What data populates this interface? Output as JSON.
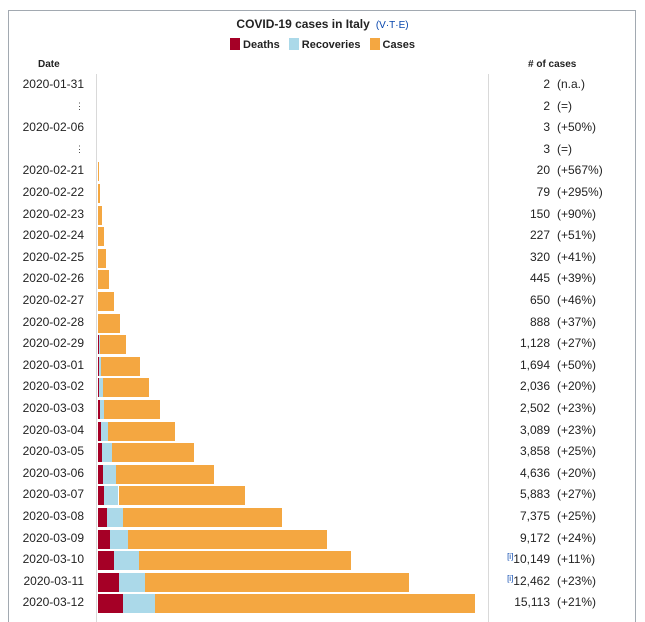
{
  "title": "COVID-19 cases in Italy",
  "vte": "(V·T·E)",
  "legend": [
    {
      "label": "Deaths",
      "color": "#a50026"
    },
    {
      "label": "Recoveries",
      "color": "#abd9e9"
    },
    {
      "label": "Cases",
      "color": "#f4a741"
    }
  ],
  "headers": {
    "date": "Date",
    "cases": "# of cases"
  },
  "chart_data": {
    "type": "bar",
    "orientation": "horizontal",
    "stacked": true,
    "title": "COVID-19 cases in Italy",
    "xmax": 15113,
    "rows": [
      {
        "date": "2020-01-31",
        "cases": 2,
        "deaths": 0,
        "recoveries": 0,
        "cases_label": "2",
        "change": "(n.a.)",
        "ref": ""
      },
      {
        "date": "⋮",
        "cases": 2,
        "deaths": 0,
        "recoveries": 0,
        "cases_label": "2",
        "change": "(=)",
        "ref": ""
      },
      {
        "date": "2020-02-06",
        "cases": 3,
        "deaths": 0,
        "recoveries": 0,
        "cases_label": "3",
        "change": "(+50%)",
        "ref": ""
      },
      {
        "date": "⋮",
        "cases": 3,
        "deaths": 0,
        "recoveries": 0,
        "cases_label": "3",
        "change": "(=)",
        "ref": ""
      },
      {
        "date": "2020-02-21",
        "cases": 20,
        "deaths": 0,
        "recoveries": 0,
        "cases_label": "20",
        "change": "(+567%)",
        "ref": ""
      },
      {
        "date": "2020-02-22",
        "cases": 79,
        "deaths": 0,
        "recoveries": 0,
        "cases_label": "79",
        "change": "(+295%)",
        "ref": ""
      },
      {
        "date": "2020-02-23",
        "cases": 150,
        "deaths": 0,
        "recoveries": 0,
        "cases_label": "150",
        "change": "(+90%)",
        "ref": ""
      },
      {
        "date": "2020-02-24",
        "cases": 227,
        "deaths": 0,
        "recoveries": 0,
        "cases_label": "227",
        "change": "(+51%)",
        "ref": ""
      },
      {
        "date": "2020-02-25",
        "cases": 320,
        "deaths": 0,
        "recoveries": 0,
        "cases_label": "320",
        "change": "(+41%)",
        "ref": ""
      },
      {
        "date": "2020-02-26",
        "cases": 445,
        "deaths": 0,
        "recoveries": 0,
        "cases_label": "445",
        "change": "(+39%)",
        "ref": ""
      },
      {
        "date": "2020-02-27",
        "cases": 650,
        "deaths": 0,
        "recoveries": 0,
        "cases_label": "650",
        "change": "(+46%)",
        "ref": ""
      },
      {
        "date": "2020-02-28",
        "cases": 888,
        "deaths": 0,
        "recoveries": 0,
        "cases_label": "888",
        "change": "(+37%)",
        "ref": ""
      },
      {
        "date": "2020-02-29",
        "cases": 1128,
        "deaths": 30,
        "recoveries": 40,
        "cases_label": "1,128",
        "change": "(+27%)",
        "ref": ""
      },
      {
        "date": "2020-03-01",
        "cases": 1694,
        "deaths": 35,
        "recoveries": 80,
        "cases_label": "1,694",
        "change": "(+50%)",
        "ref": ""
      },
      {
        "date": "2020-03-02",
        "cases": 2036,
        "deaths": 52,
        "recoveries": 150,
        "cases_label": "2,036",
        "change": "(+20%)",
        "ref": ""
      },
      {
        "date": "2020-03-03",
        "cases": 2502,
        "deaths": 80,
        "recoveries": 160,
        "cases_label": "2,502",
        "change": "(+23%)",
        "ref": ""
      },
      {
        "date": "2020-03-04",
        "cases": 3089,
        "deaths": 107,
        "recoveries": 276,
        "cases_label": "3,089",
        "change": "(+23%)",
        "ref": ""
      },
      {
        "date": "2020-03-05",
        "cases": 3858,
        "deaths": 148,
        "recoveries": 414,
        "cases_label": "3,858",
        "change": "(+25%)",
        "ref": ""
      },
      {
        "date": "2020-03-06",
        "cases": 4636,
        "deaths": 197,
        "recoveries": 523,
        "cases_label": "4,636",
        "change": "(+20%)",
        "ref": ""
      },
      {
        "date": "2020-03-07",
        "cases": 5883,
        "deaths": 233,
        "recoveries": 589,
        "cases_label": "5,883",
        "change": "(+27%)",
        "ref": ""
      },
      {
        "date": "2020-03-08",
        "cases": 7375,
        "deaths": 366,
        "recoveries": 622,
        "cases_label": "7,375",
        "change": "(+25%)",
        "ref": ""
      },
      {
        "date": "2020-03-09",
        "cases": 9172,
        "deaths": 463,
        "recoveries": 724,
        "cases_label": "9,172",
        "change": "(+24%)",
        "ref": ""
      },
      {
        "date": "2020-03-10",
        "cases": 10149,
        "deaths": 631,
        "recoveries": 1004,
        "cases_label": "10,149",
        "change": "(+11%)",
        "ref": "[i]"
      },
      {
        "date": "2020-03-11",
        "cases": 12462,
        "deaths": 827,
        "recoveries": 1045,
        "cases_label": "12,462",
        "change": "(+23%)",
        "ref": "[i]"
      },
      {
        "date": "2020-03-12",
        "cases": 15113,
        "deaths": 1016,
        "recoveries": 1258,
        "cases_label": "15,113",
        "change": "(+21%)",
        "ref": ""
      }
    ]
  }
}
